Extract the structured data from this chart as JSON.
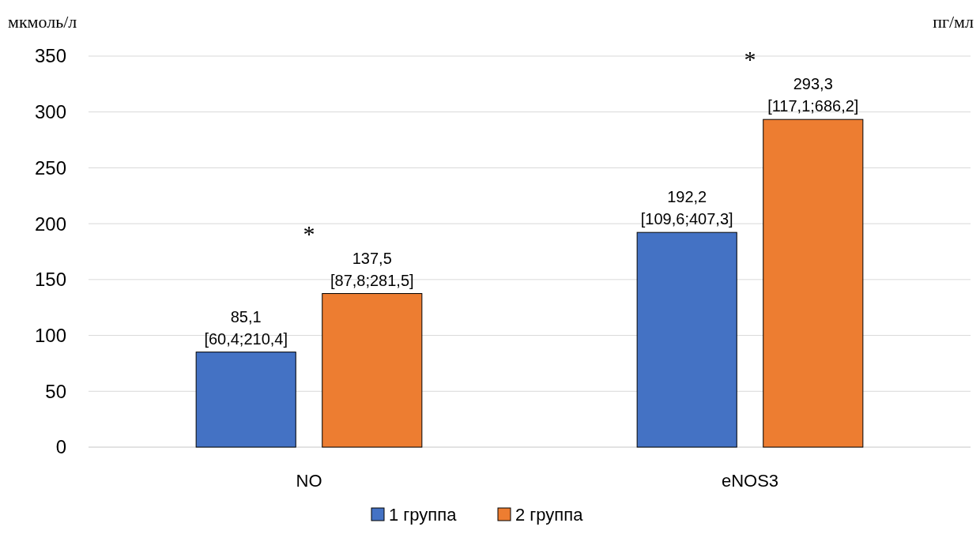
{
  "chart_data": {
    "type": "bar",
    "ylabel": "мкмоль/л",
    "y2label": "пг/мл",
    "categories": [
      "NO",
      "eNOS3"
    ],
    "series": [
      {
        "name": "1 группа",
        "color": "#4472c4",
        "values": [
          85.1,
          192.2
        ],
        "value_labels": [
          "85,1\n[60,4;210,4]",
          "192,2\n[109,6;407,3]"
        ]
      },
      {
        "name": "2 группа",
        "color": "#ed7d31",
        "values": [
          137.5,
          293.3
        ],
        "value_labels": [
          "137,5\n[87,8;281,5]",
          "293,3\n[117,1;686,2]"
        ]
      }
    ],
    "annotations": [
      "*",
      "*"
    ],
    "ylim": [
      0,
      350
    ],
    "yticks": [
      0,
      50,
      100,
      150,
      200,
      250,
      300,
      350
    ],
    "grid": "y",
    "legend": "bottom"
  }
}
